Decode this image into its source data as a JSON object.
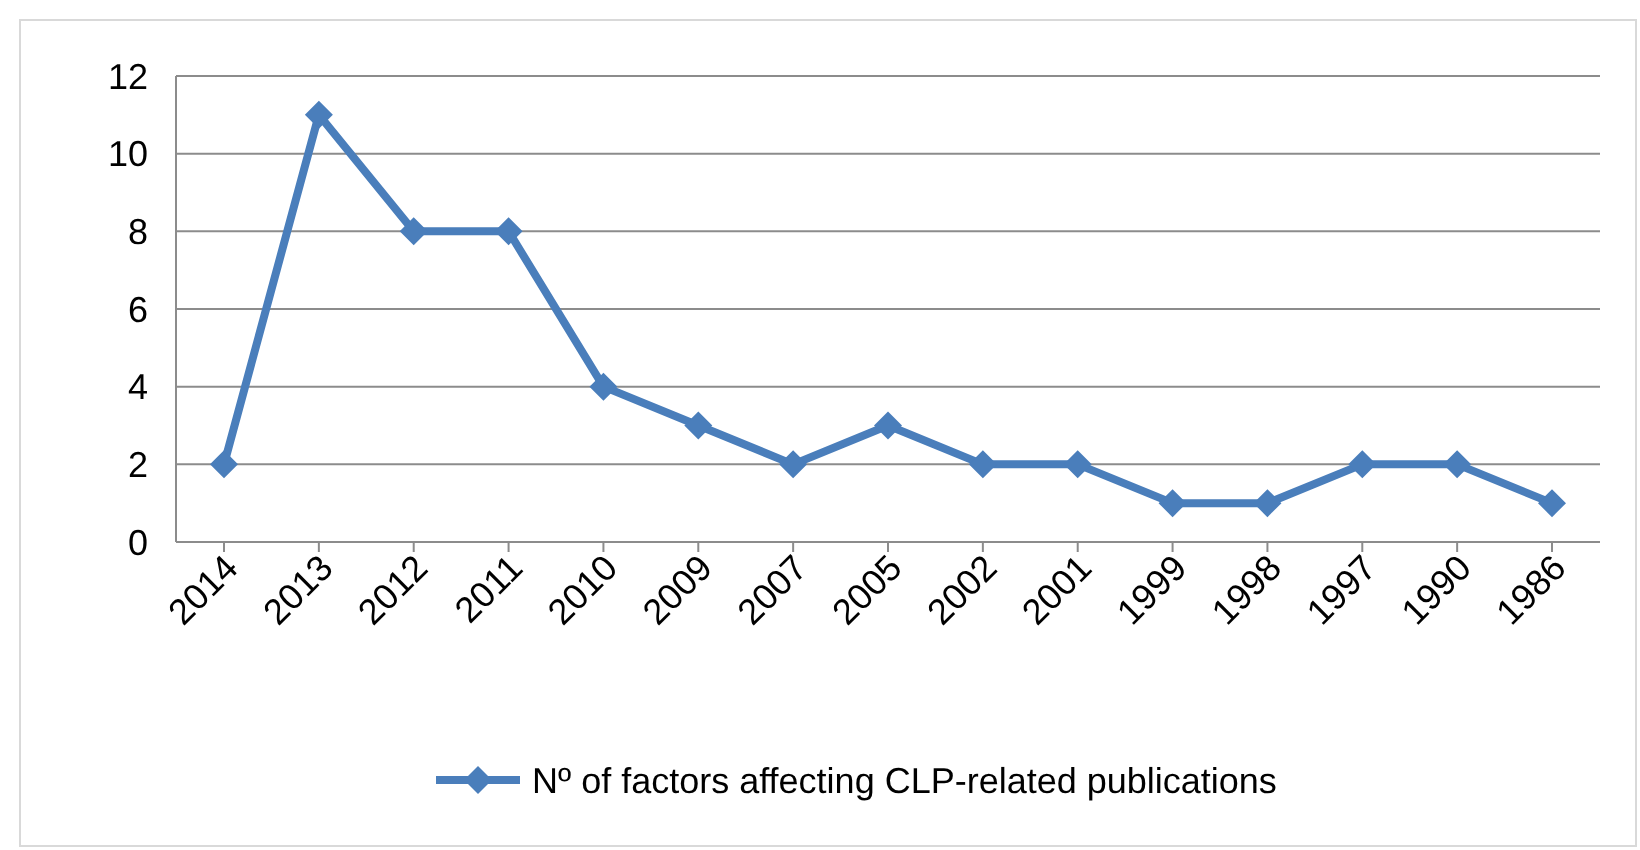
{
  "chart_data": {
    "type": "line",
    "categories": [
      "2014",
      "2013",
      "2012",
      "2011",
      "2010",
      "2009",
      "2007",
      "2005",
      "2002",
      "2001",
      "1999",
      "1998",
      "1997",
      "1990",
      "1986"
    ],
    "series": [
      {
        "name": "Nº of factors affecting CLP-related publications",
        "color": "#4a7ebb",
        "values": [
          2,
          11,
          8,
          8,
          4,
          3,
          2,
          3,
          2,
          2,
          1,
          1,
          2,
          2,
          1
        ]
      }
    ],
    "ylim": [
      0,
      12
    ],
    "yticks": [
      0,
      2,
      4,
      6,
      8,
      10,
      12
    ],
    "grid": "y",
    "legend": "bottom",
    "marker": "diamond",
    "line_style": "solid"
  }
}
